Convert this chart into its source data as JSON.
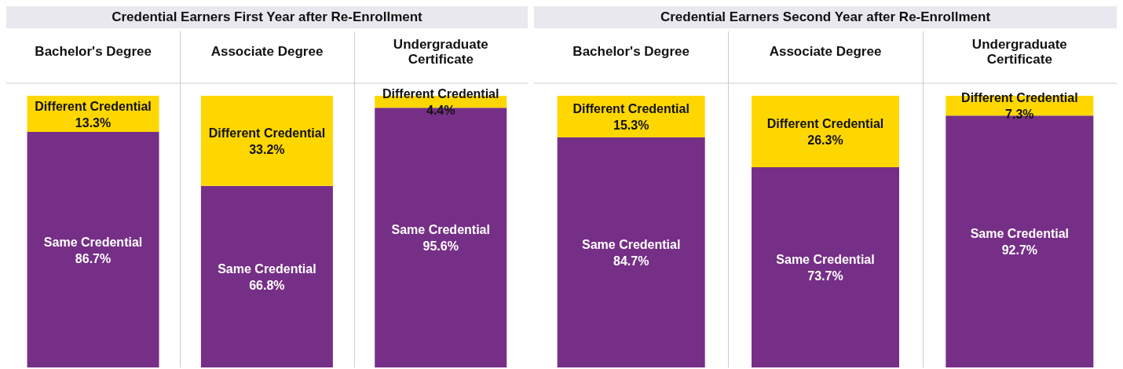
{
  "chart_data": [
    {
      "type": "bar",
      "title": "Credential Earners First Year after Re-Enrollment",
      "categories": [
        "Bachelor's Degree",
        "Associate Degree",
        "Undergraduate Certificate"
      ],
      "stacked": true,
      "tick_labels": "x",
      "series": [
        {
          "name": "Same Credential",
          "color": "#762f87",
          "values": [
            86.7,
            66.8,
            95.6
          ],
          "value_labels": [
            "86.7%",
            "66.8%",
            "95.6%"
          ]
        },
        {
          "name": "Different Credential",
          "color": "#ffd700",
          "values": [
            13.3,
            33.2,
            4.4
          ],
          "value_labels": [
            "13.3%",
            "33.2%",
            "4.4%"
          ]
        }
      ]
    },
    {
      "type": "bar",
      "title": "Credential Earners Second Year after Re-Enrollment",
      "categories": [
        "Bachelor's Degree",
        "Associate Degree",
        "Undergraduate Certificate"
      ],
      "stacked": true,
      "tick_labels": "x",
      "series": [
        {
          "name": "Same Credential",
          "color": "#762f87",
          "values": [
            84.7,
            73.7,
            92.7
          ],
          "value_labels": [
            "84.7%",
            "73.7%",
            "92.7%"
          ]
        },
        {
          "name": "Different Credential",
          "color": "#ffd700",
          "values": [
            15.3,
            26.3,
            7.3
          ],
          "value_labels": [
            "15.3%",
            "26.3%",
            "7.3%"
          ]
        }
      ]
    }
  ]
}
